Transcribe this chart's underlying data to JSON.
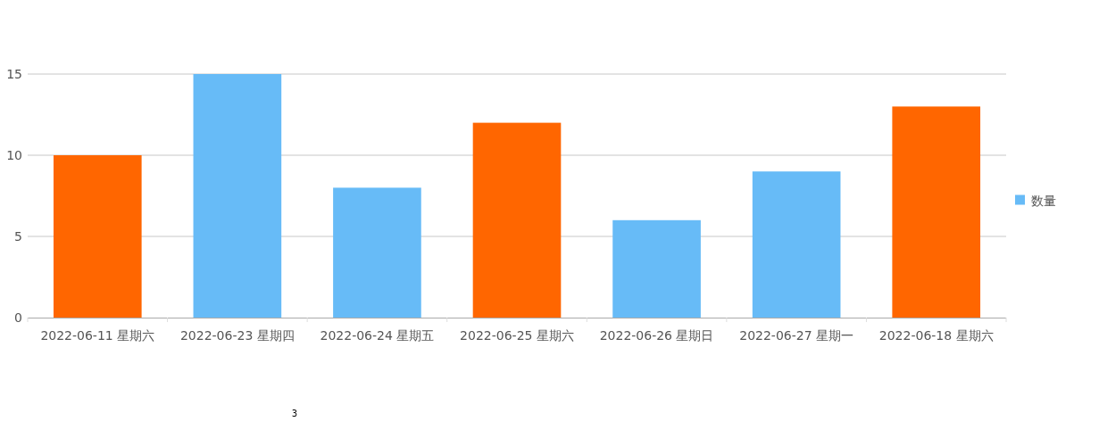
{
  "chart_data": {
    "type": "bar",
    "categories": [
      "2022-06-11 星期六",
      "2022-06-23 星期四",
      "2022-06-24 星期五",
      "2022-06-25 星期六",
      "2022-06-26 星期日",
      "2022-06-27 星期一",
      "2022-06-18 星期六"
    ],
    "series": [
      {
        "name": "数量",
        "color": "#67bbf7",
        "values": [
          10,
          15,
          8,
          12,
          6,
          9,
          13
        ],
        "colors": [
          "#ff6600",
          "#67bbf7",
          "#67bbf7",
          "#ff6600",
          "#67bbf7",
          "#67bbf7",
          "#ff6600"
        ]
      }
    ],
    "ylim": [
      0,
      15
    ],
    "yticks": [
      0,
      5,
      10,
      15
    ],
    "grid": "y",
    "legend": "right",
    "annotations": [
      "3"
    ]
  }
}
